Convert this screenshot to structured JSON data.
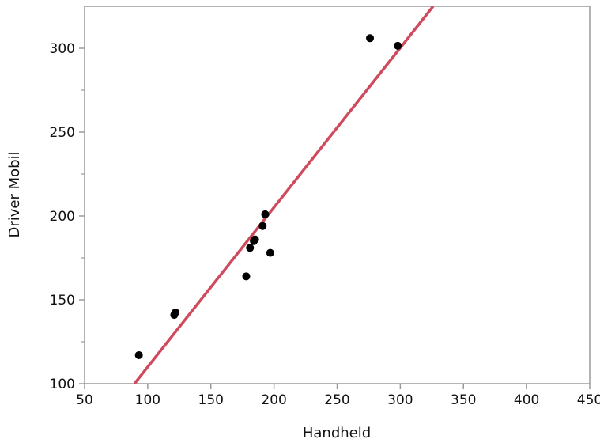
{
  "chart_data": {
    "type": "scatter",
    "title": "",
    "xlabel": "Handheld",
    "ylabel": "Driver Mobil",
    "xlim": [
      50,
      450
    ],
    "ylim": [
      100,
      325
    ],
    "xticks": [
      50,
      100,
      150,
      200,
      250,
      300,
      350,
      400,
      450
    ],
    "yticks": [
      100,
      150,
      200,
      250,
      300
    ],
    "yminor_ticks": [
      125,
      175,
      225,
      275
    ],
    "grid": false,
    "legend": "none",
    "series": [
      {
        "points": [
          {
            "x": 93,
            "y": 117
          },
          {
            "x": 121,
            "y": 141
          },
          {
            "x": 122,
            "y": 142.5
          },
          {
            "x": 178,
            "y": 164
          },
          {
            "x": 181,
            "y": 181
          },
          {
            "x": 184,
            "y": 185
          },
          {
            "x": 185,
            "y": 186
          },
          {
            "x": 191,
            "y": 194
          },
          {
            "x": 193,
            "y": 201
          },
          {
            "x": 197,
            "y": 178
          },
          {
            "x": 276,
            "y": 306
          },
          {
            "x": 298,
            "y": 301.5
          }
        ],
        "color": "#000000"
      }
    ],
    "fit_line": {
      "color": "#d04a5e",
      "x": [
        89.5,
        326
      ],
      "y": [
        100,
        325
      ]
    }
  }
}
